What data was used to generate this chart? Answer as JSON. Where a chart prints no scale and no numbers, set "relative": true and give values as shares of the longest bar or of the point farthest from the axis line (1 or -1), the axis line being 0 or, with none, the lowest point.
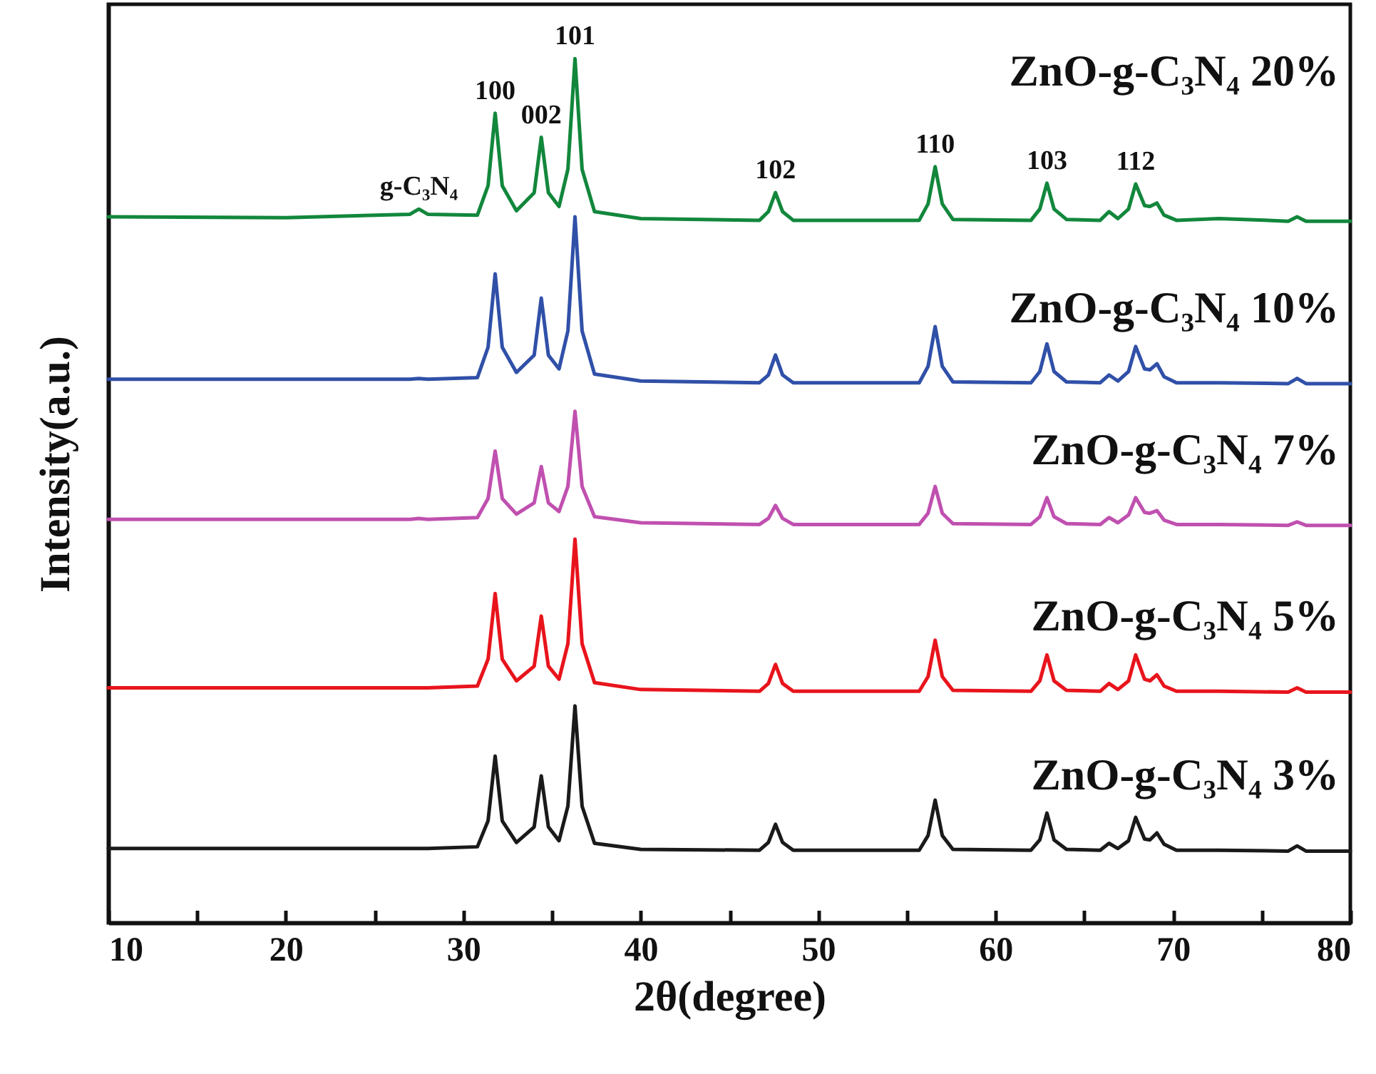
{
  "chart_data": {
    "type": "line",
    "relative": true,
    "xlabel": "2θ(degree)",
    "ylabel": "Intensity(a.u.)",
    "x": [
      10,
      20,
      27.0,
      27.5,
      28.0,
      30.8,
      31.4,
      31.8,
      32.2,
      33.0,
      34.0,
      34.4,
      34.8,
      35.4,
      35.9,
      36.3,
      36.7,
      37.4,
      40,
      46.7,
      47.2,
      47.6,
      48.0,
      48.6,
      55.7,
      56.2,
      56.6,
      57.0,
      57.6,
      62.0,
      62.5,
      62.9,
      63.3,
      64.0,
      65.9,
      66.4,
      66.9,
      67.5,
      67.9,
      68.4,
      68.7,
      69.1,
      69.5,
      70.2,
      72.6,
      76.5,
      77,
      77.5,
      80
    ],
    "xlim": [
      10,
      80
    ],
    "xticks": [
      10,
      {
        "value": 15,
        "label": null
      },
      20,
      {
        "value": 25,
        "label": null
      },
      30,
      {
        "value": 35,
        "label": null
      },
      40,
      {
        "value": 45,
        "label": null
      },
      50,
      {
        "value": 55,
        "label": null
      },
      60,
      {
        "value": 65,
        "label": null
      },
      70,
      {
        "value": 75,
        "label": null
      },
      80
    ],
    "grid": false,
    "marker": "none",
    "line_style": "solid",
    "series": [
      {
        "name": "ZnO-g-C₃N₄ 3%",
        "color": "#1a1a1a",
        "values": [
          0.086,
          0.086,
          0.086,
          0.086,
          0.086,
          0.088,
          0.118,
          0.193,
          0.118,
          0.093,
          0.111,
          0.17,
          0.111,
          0.095,
          0.135,
          0.251,
          0.135,
          0.092,
          0.085,
          0.084,
          0.093,
          0.114,
          0.093,
          0.084,
          0.084,
          0.101,
          0.142,
          0.101,
          0.085,
          0.084,
          0.096,
          0.127,
          0.096,
          0.085,
          0.084,
          0.092,
          0.086,
          0.095,
          0.122,
          0.097,
          0.096,
          0.104,
          0.091,
          0.084,
          0.084,
          0.083,
          0.089,
          0.083,
          0.083
        ]
      },
      {
        "name": "ZnO-g-C₃N₄ 5%",
        "color": "#e8141c",
        "values": [
          0.272,
          0.272,
          0.272,
          0.272,
          0.272,
          0.274,
          0.305,
          0.381,
          0.305,
          0.28,
          0.297,
          0.355,
          0.297,
          0.282,
          0.323,
          0.444,
          0.323,
          0.278,
          0.27,
          0.268,
          0.277,
          0.299,
          0.277,
          0.268,
          0.268,
          0.285,
          0.327,
          0.285,
          0.269,
          0.268,
          0.28,
          0.31,
          0.28,
          0.269,
          0.268,
          0.277,
          0.27,
          0.28,
          0.31,
          0.282,
          0.28,
          0.287,
          0.274,
          0.268,
          0.268,
          0.267,
          0.272,
          0.267,
          0.267
        ]
      },
      {
        "name": "ZnO-g-C₃N₄ 7%",
        "color": "#c050b0",
        "values": [
          0.467,
          0.467,
          0.467,
          0.468,
          0.467,
          0.469,
          0.491,
          0.546,
          0.491,
          0.473,
          0.486,
          0.528,
          0.486,
          0.476,
          0.505,
          0.592,
          0.505,
          0.47,
          0.463,
          0.461,
          0.468,
          0.483,
          0.468,
          0.461,
          0.461,
          0.474,
          0.505,
          0.474,
          0.462,
          0.461,
          0.47,
          0.492,
          0.47,
          0.462,
          0.461,
          0.469,
          0.463,
          0.472,
          0.492,
          0.475,
          0.474,
          0.477,
          0.466,
          0.461,
          0.461,
          0.46,
          0.464,
          0.46,
          0.46
        ]
      },
      {
        "name": "ZnO-g-C₃N₄ 10%",
        "color": "#3050a8",
        "values": [
          0.629,
          0.629,
          0.629,
          0.63,
          0.629,
          0.631,
          0.666,
          0.751,
          0.666,
          0.637,
          0.657,
          0.723,
          0.657,
          0.641,
          0.685,
          0.817,
          0.685,
          0.635,
          0.627,
          0.625,
          0.634,
          0.657,
          0.634,
          0.625,
          0.625,
          0.644,
          0.69,
          0.644,
          0.626,
          0.625,
          0.638,
          0.67,
          0.638,
          0.626,
          0.625,
          0.634,
          0.627,
          0.638,
          0.667,
          0.641,
          0.64,
          0.647,
          0.632,
          0.625,
          0.625,
          0.624,
          0.63,
          0.624,
          0.624
        ]
      },
      {
        "name": "ZnO-g-C₃N₄ 20%",
        "color": "#12873c",
        "values": [
          0.817,
          0.816,
          0.82,
          0.826,
          0.82,
          0.819,
          0.853,
          0.937,
          0.853,
          0.824,
          0.845,
          0.909,
          0.845,
          0.829,
          0.872,
          1,
          0.872,
          0.823,
          0.815,
          0.813,
          0.823,
          0.845,
          0.823,
          0.813,
          0.813,
          0.832,
          0.875,
          0.832,
          0.814,
          0.813,
          0.826,
          0.856,
          0.826,
          0.814,
          0.813,
          0.823,
          0.815,
          0.826,
          0.855,
          0.83,
          0.829,
          0.833,
          0.819,
          0.813,
          0.815,
          0.812,
          0.817,
          0.812,
          0.812
        ]
      }
    ],
    "annotations": [
      {
        "text": "g-C₃N₄",
        "x": 27.5,
        "y": 0.826
      },
      {
        "text": "100",
        "x": 31.8,
        "y": 0.937
      },
      {
        "text": "002",
        "x": 34.4,
        "y": 0.909
      },
      {
        "text": "101",
        "x": 36.3,
        "y": 1
      },
      {
        "text": "102",
        "x": 47.6,
        "y": 0.845
      },
      {
        "text": "110",
        "x": 56.6,
        "y": 0.875
      },
      {
        "text": "103",
        "x": 62.9,
        "y": 0.856
      },
      {
        "text": "112",
        "x": 67.9,
        "y": 0.855
      }
    ]
  }
}
